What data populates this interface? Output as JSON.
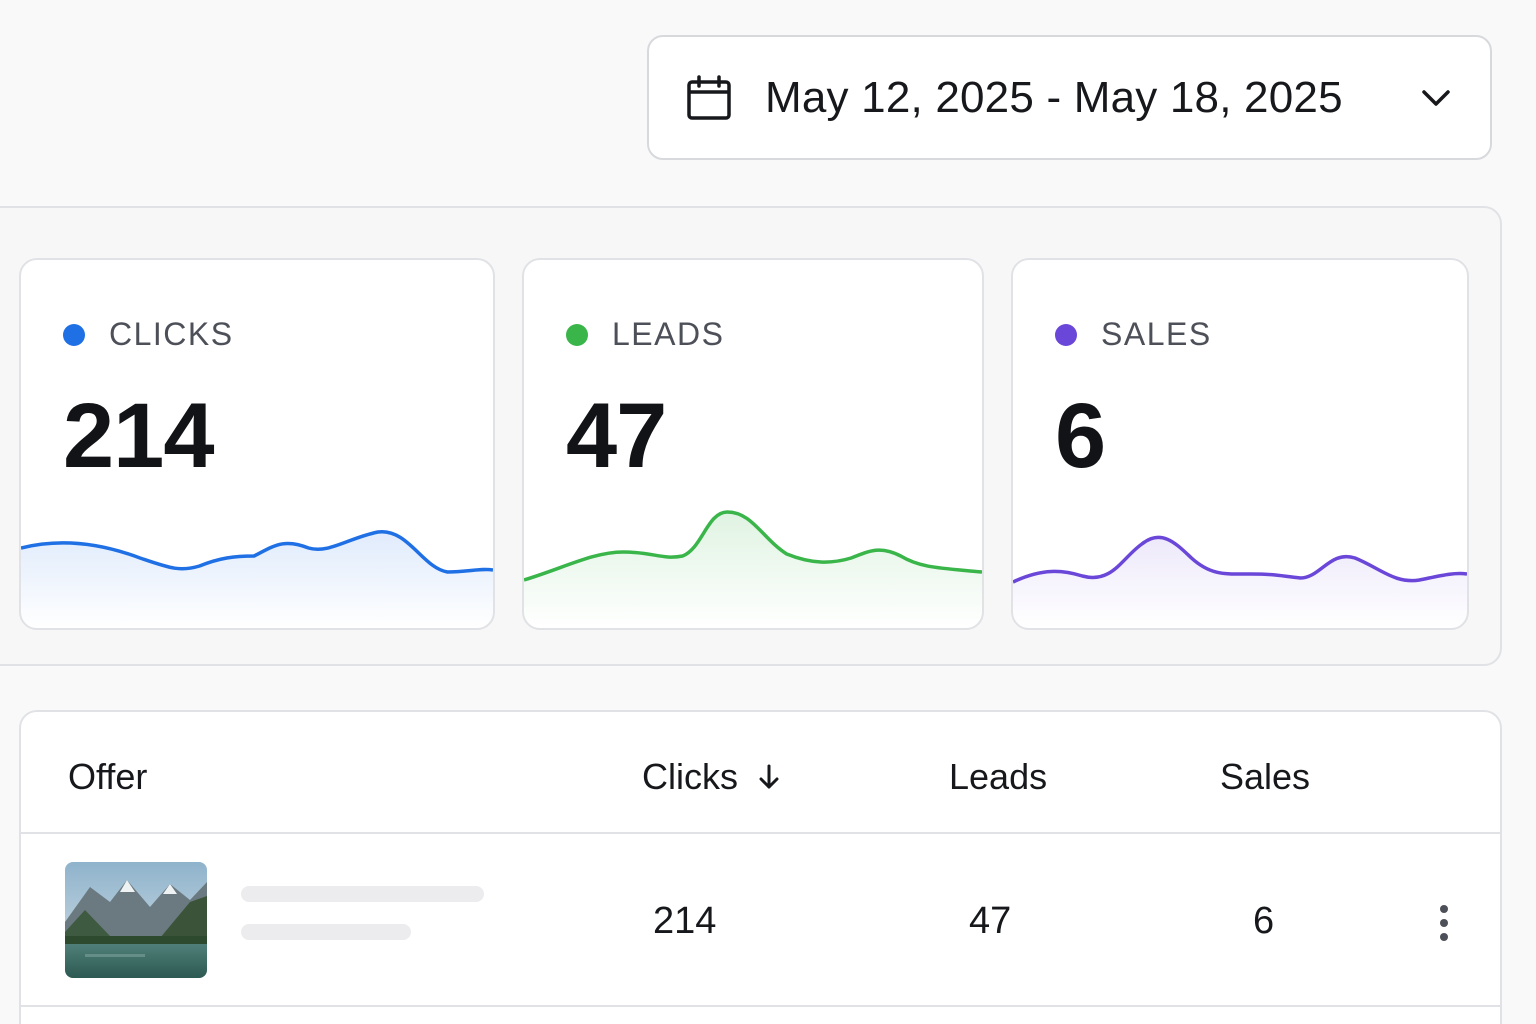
{
  "date_range": {
    "label": "May 12, 2025 - May 18, 2025",
    "icon": "calendar-icon",
    "dropdown_icon": "chevron-down-icon"
  },
  "stats": [
    {
      "key": "clicks",
      "label": "CLICKS",
      "value": "214",
      "color": "#1f6fe5"
    },
    {
      "key": "leads",
      "label": "LEADS",
      "value": "47",
      "color": "#3ab54a"
    },
    {
      "key": "sales",
      "label": "SALES",
      "value": "6",
      "color": "#6a46d9"
    }
  ],
  "table": {
    "columns": {
      "offer": "Offer",
      "clicks": "Clicks",
      "leads": "Leads",
      "sales": "Sales"
    },
    "sort": {
      "column": "clicks",
      "direction": "descending",
      "icon": "arrow-down-icon"
    },
    "rows": [
      {
        "clicks": "214",
        "leads": "47",
        "sales": "6",
        "thumbnail": "mountain-lake-image",
        "menu_icon": "more-vertical-icon"
      }
    ]
  }
}
